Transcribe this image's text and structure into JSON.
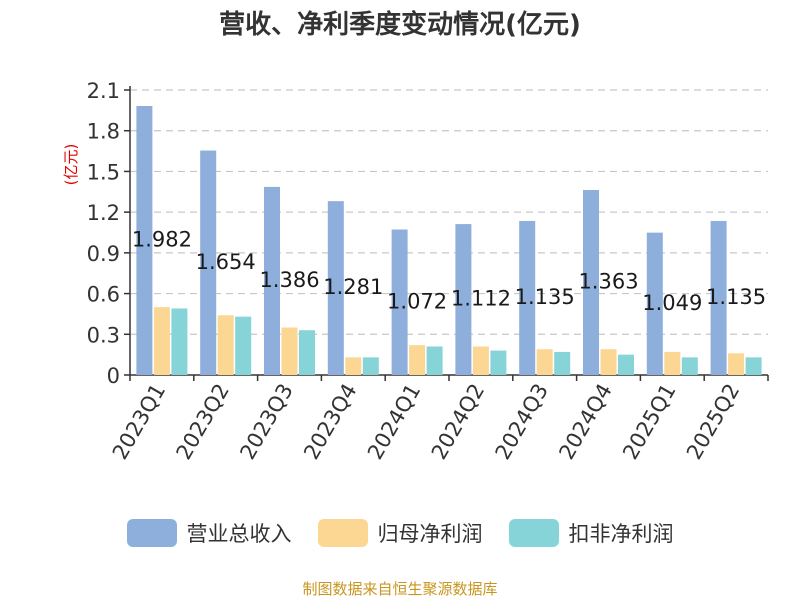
{
  "title": "营收、净利季度变动情况(亿元)",
  "source": "制图数据来自恒生聚源数据库",
  "chart_data": {
    "type": "bar",
    "title": "营收、净利季度变动情况(亿元)",
    "ylabel": "(亿元)",
    "ylabel_color": "#e00000",
    "ylim": [
      0,
      2.1
    ],
    "yticks": [
      "0",
      "0.3",
      "0.6",
      "0.9",
      "1.2",
      "1.5",
      "1.8",
      "2.1"
    ],
    "grid": true,
    "legend_position": "bottom",
    "categories": [
      "2023Q1",
      "2023Q2",
      "2023Q3",
      "2023Q4",
      "2024Q1",
      "2024Q2",
      "2024Q3",
      "2024Q4",
      "2025Q1",
      "2025Q2"
    ],
    "series": [
      {
        "name": "营业总收入",
        "color": "#8eaedc",
        "values": [
          1.982,
          1.654,
          1.386,
          1.281,
          1.072,
          1.112,
          1.135,
          1.363,
          1.049,
          1.135
        ],
        "labels": [
          "1.982",
          "1.654",
          "1.386",
          "1.281",
          "1.072",
          "1.112",
          "1.135",
          "1.363",
          "1.049",
          "1.135"
        ]
      },
      {
        "name": "归母净利润",
        "color": "#fcd693",
        "values": [
          0.5,
          0.44,
          0.35,
          0.13,
          0.22,
          0.21,
          0.19,
          0.19,
          0.17,
          0.16
        ]
      },
      {
        "name": "扣非净利润",
        "color": "#86d4d8",
        "values": [
          0.49,
          0.43,
          0.33,
          0.13,
          0.21,
          0.18,
          0.17,
          0.15,
          0.13,
          0.13
        ]
      }
    ]
  }
}
